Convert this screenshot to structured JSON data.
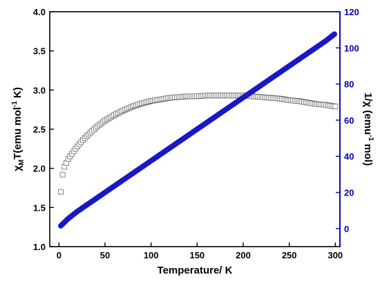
{
  "chart_data": {
    "type": "scatter",
    "xlabel": "Temperature/ K",
    "ylabel_left": {
      "base": "χ",
      "sub": "M",
      "mid": "T(emu mol",
      "sup": "-1",
      "end": " K)"
    },
    "ylabel_right": {
      "pre": "1/χ (emu",
      "sup": "-1",
      "end": " mol)"
    },
    "xlim": [
      -10,
      305
    ],
    "ylim_left": [
      1.0,
      4.0
    ],
    "ylim_right": [
      -10,
      120
    ],
    "x_ticks": [
      0,
      50,
      100,
      150,
      200,
      250,
      300
    ],
    "y_left_ticks": [
      "1.0",
      "1.5",
      "2.0",
      "2.5",
      "3.0",
      "3.5",
      "4.0"
    ],
    "y_right_ticks": [
      "0",
      "20",
      "40",
      "60",
      "80",
      "100",
      "120"
    ],
    "colors": {
      "axis_left": "#000000",
      "axis_right": "#0000b4",
      "series_inverse": "#1818c8",
      "series_chimt": "#666666"
    },
    "series": [
      {
        "axis": "left",
        "marker": "open-square",
        "x": [
          2,
          4,
          6,
          8,
          10,
          15,
          20,
          25,
          30,
          40,
          50,
          60,
          70,
          80,
          90,
          100,
          110,
          120,
          130,
          140,
          150,
          160,
          170,
          180,
          190,
          200,
          210,
          220,
          230,
          240,
          250,
          260,
          270,
          280,
          290,
          300
        ],
        "y": [
          1.7,
          1.92,
          2.02,
          2.07,
          2.12,
          2.2,
          2.28,
          2.35,
          2.41,
          2.52,
          2.61,
          2.68,
          2.74,
          2.79,
          2.83,
          2.86,
          2.88,
          2.9,
          2.91,
          2.92,
          2.92,
          2.93,
          2.93,
          2.93,
          2.93,
          2.93,
          2.92,
          2.91,
          2.9,
          2.89,
          2.87,
          2.86,
          2.84,
          2.82,
          2.81,
          2.79
        ]
      },
      {
        "axis": "right",
        "marker": "filled-circle",
        "x": [
          2,
          5,
          10,
          20,
          30,
          40,
          50,
          60,
          70,
          80,
          90,
          100,
          110,
          120,
          130,
          140,
          150,
          160,
          170,
          180,
          190,
          200,
          210,
          220,
          230,
          240,
          250,
          260,
          270,
          280,
          290,
          300
        ],
        "y": [
          1.5,
          3.0,
          5.5,
          9.5,
          13.0,
          16.5,
          20.0,
          23.5,
          27.0,
          30.5,
          34.0,
          37.5,
          41.0,
          44.5,
          48.0,
          51.5,
          55.0,
          58.5,
          62.0,
          65.5,
          69.0,
          72.5,
          76.0,
          79.5,
          83.0,
          86.5,
          90.0,
          93.5,
          97.0,
          100.5,
          104.0,
          108.0
        ]
      }
    ]
  }
}
